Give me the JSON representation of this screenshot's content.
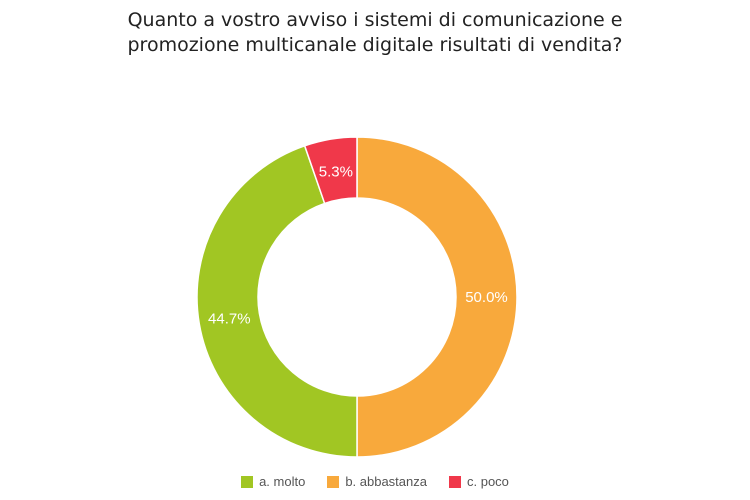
{
  "title_lines": [
    "Quanto a vostro avviso i sistemi di comunicazione e",
    "promozione multicanale digitale risultati di vendita?"
  ],
  "chart_data": {
    "type": "pie",
    "title": "Quanto a vostro avviso i sistemi di comunicazione e promozione multicanale digitale risultati di vendita?",
    "donut": true,
    "legend_position": "bottom",
    "slices": [
      {
        "name": "b. abbastanza",
        "value": 50.0,
        "label": "50.0%",
        "color": "#f8a93c"
      },
      {
        "name": "a. molto",
        "value": 44.7,
        "label": "44.7%",
        "color": "#a1c623"
      },
      {
        "name": "c. poco",
        "value": 5.3,
        "label": "5.3%",
        "color": "#f0384a"
      }
    ],
    "legend": [
      {
        "label": "a. molto",
        "color": "#a1c623"
      },
      {
        "label": "b. abbastanza",
        "color": "#f8a93c"
      },
      {
        "label": "c. poco",
        "color": "#f0384a"
      }
    ]
  }
}
